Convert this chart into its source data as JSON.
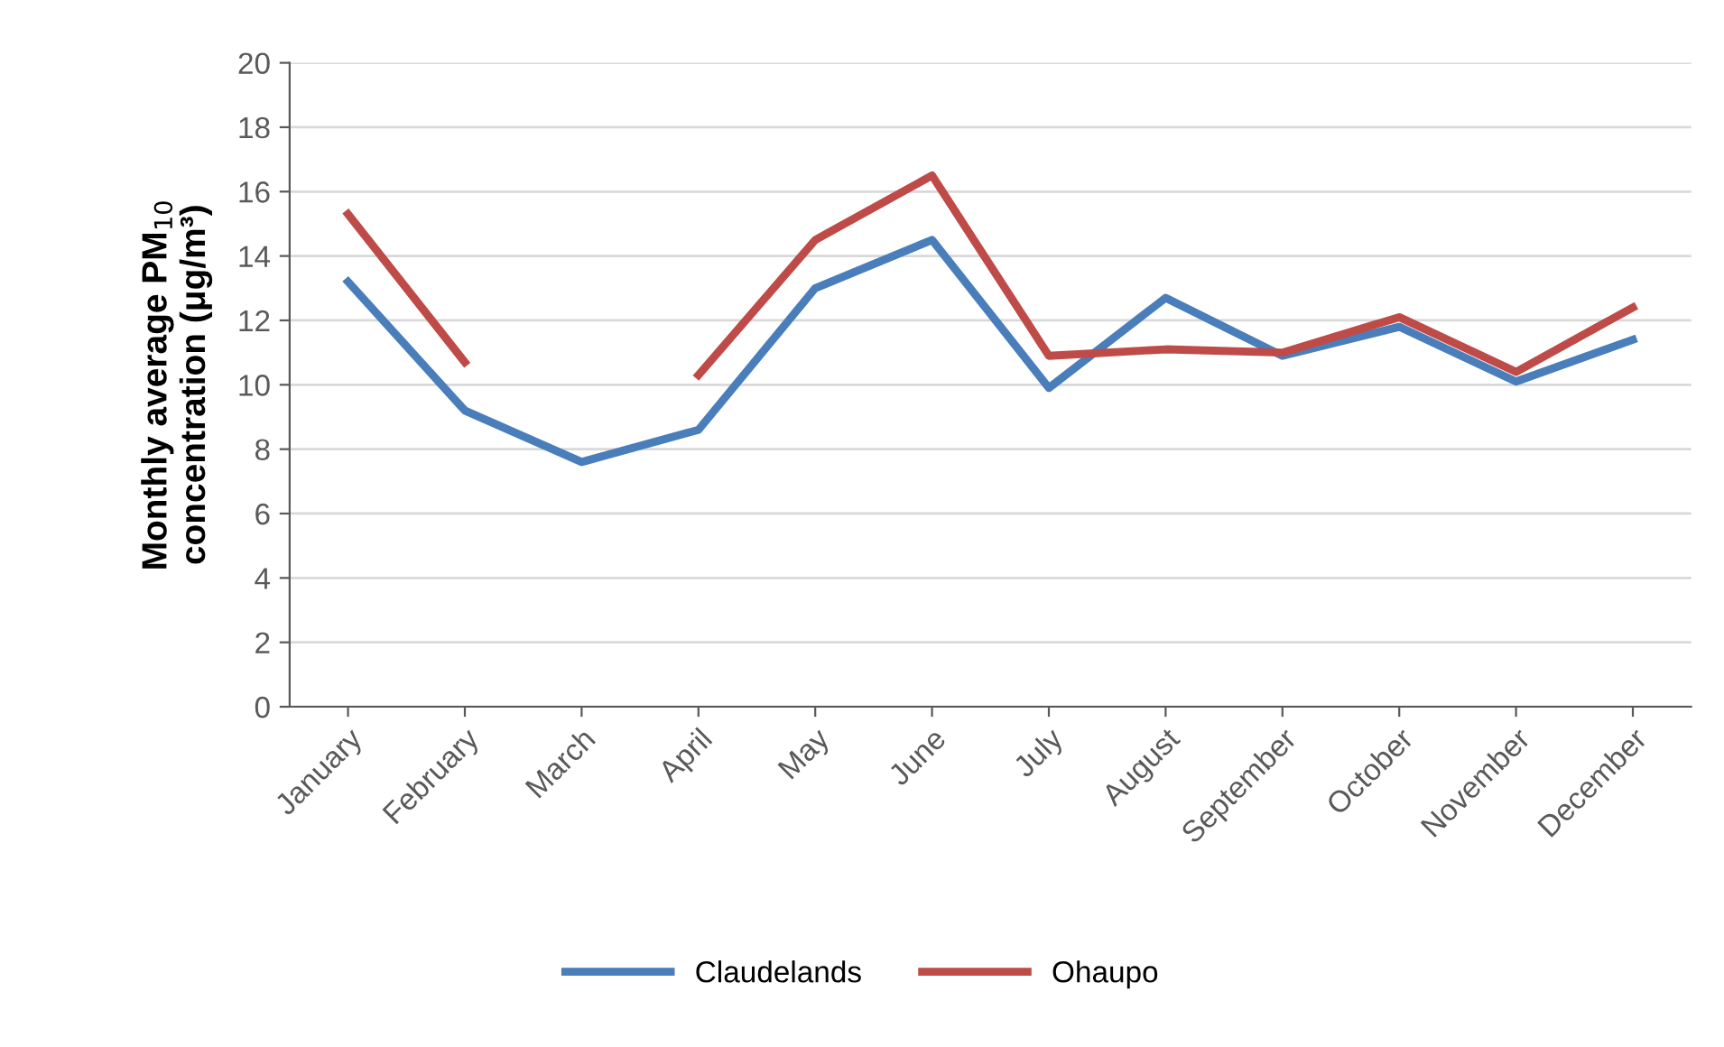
{
  "chart_data": {
    "type": "line",
    "ylabel": "Monthly average PM$_{10}$\nconcentration (μg/m³)",
    "categories": [
      "January",
      "February",
      "March",
      "April",
      "May",
      "June",
      "July",
      "August",
      "September",
      "October",
      "November",
      "December"
    ],
    "series": [
      {
        "name": "Claudelands",
        "color": "#4a7ebb",
        "values": [
          13.2,
          9.2,
          7.6,
          8.6,
          13.0,
          14.5,
          9.9,
          12.7,
          10.9,
          11.8,
          10.1,
          11.4
        ]
      },
      {
        "name": "Ohaupo",
        "color": "#be4b48",
        "values": [
          15.3,
          10.7,
          null,
          10.3,
          14.5,
          16.5,
          10.9,
          11.1,
          11.0,
          12.1,
          10.4,
          12.4
        ]
      }
    ],
    "ylim": [
      0,
      20
    ],
    "yticks": [
      0,
      2,
      4,
      6,
      8,
      10,
      12,
      14,
      16,
      18,
      20
    ],
    "grid": "y",
    "legend": "bottom",
    "marker": "none",
    "line_style": "solid"
  }
}
